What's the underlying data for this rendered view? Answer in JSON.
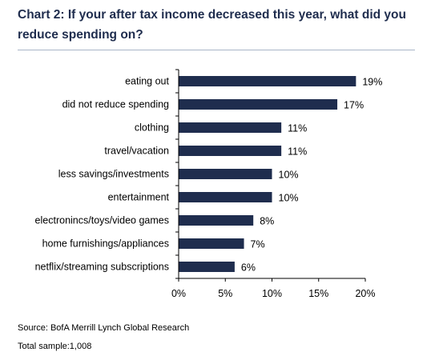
{
  "title": "Chart 2: If your after tax income decreased this year, what did you reduce spending on?",
  "source": "Source: BofA Merrill Lynch Global Research",
  "sample": "Total sample:1,008",
  "colors": {
    "bar": "#1f2d4e",
    "title": "#1f2d4e",
    "rule": "#a9b6c8"
  },
  "chart_data": {
    "type": "bar",
    "orientation": "horizontal",
    "categories": [
      "eating out",
      "did not reduce spending",
      "clothing",
      "travel/vacation",
      "less savings/investments",
      "entertainment",
      "electronincs/toys/video games",
      "home furnishings/appliances",
      "netflix/streaming subscriptions"
    ],
    "values": [
      19,
      17,
      11,
      11,
      10,
      10,
      8,
      7,
      6
    ],
    "data_labels": [
      "19%",
      "17%",
      "11%",
      "11%",
      "10%",
      "10%",
      "8%",
      "7%",
      "6%"
    ],
    "xticks": [
      0,
      5,
      10,
      15,
      20
    ],
    "xtick_labels": [
      "0%",
      "5%",
      "10%",
      "15%",
      "20%"
    ],
    "xlim": [
      0,
      20
    ],
    "grid": false,
    "legend": "none"
  }
}
